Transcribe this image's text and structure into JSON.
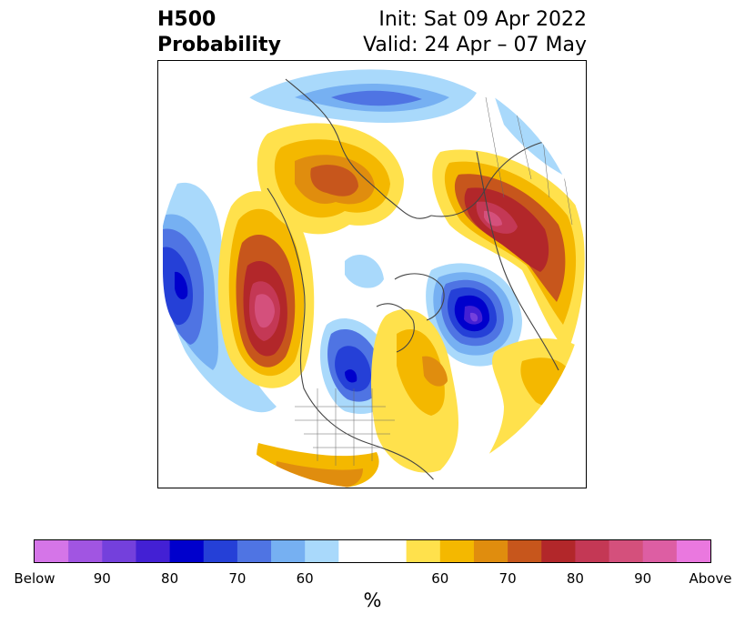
{
  "title": {
    "left_line1": "H500",
    "left_line2": "Probability",
    "right_line1": "Init: Sat 09 Apr 2022",
    "right_line2": "Valid: 24 Apr – 07 May"
  },
  "colorbar": {
    "unit": "%",
    "colors": [
      "#d575e8",
      "#a155e2",
      "#7440dc",
      "#4320d4",
      "#0000cc",
      "#2540d7",
      "#4f74e3",
      "#76b0f2",
      "#a9d9fb",
      "#ffffff",
      "#ffffff",
      "#ffe14c",
      "#f4b800",
      "#e08d0e",
      "#c7561c",
      "#b2272a",
      "#c43855",
      "#d4507c",
      "#dd5ea3",
      "#ea78df"
    ],
    "tick_labels": [
      {
        "text": "Below",
        "index": 0
      },
      {
        "text": "90",
        "index": 2
      },
      {
        "text": "80",
        "index": 4
      },
      {
        "text": "70",
        "index": 6
      },
      {
        "text": "60",
        "index": 8
      },
      {
        "text": "60",
        "index": 12
      },
      {
        "text": "70",
        "index": 14
      },
      {
        "text": "80",
        "index": 16
      },
      {
        "text": "90",
        "index": 18
      },
      {
        "text": "Above",
        "index": 20
      }
    ]
  }
}
